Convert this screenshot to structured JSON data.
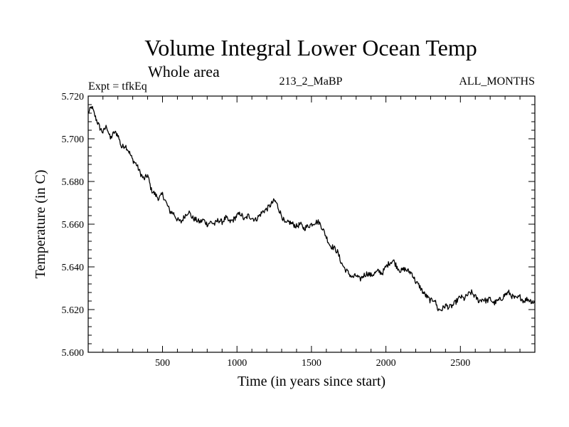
{
  "chart_data": {
    "type": "line",
    "title": "Volume Integral Lower Ocean Temp",
    "subtitle": "Whole area",
    "annotations": {
      "left": "Expt = tfkEq",
      "center": "213_2_MaBP",
      "right": "ALL_MONTHS"
    },
    "xlabel": "Time (in years since start)",
    "ylabel": "Temperature (in C)",
    "xlim": [
      1,
      3000
    ],
    "ylim": [
      5.6,
      5.72
    ],
    "x_ticks": [
      500,
      1000,
      1500,
      2000,
      2500
    ],
    "x_tick_labels": [
      "500",
      "1000",
      "1500",
      "2000",
      "2500"
    ],
    "y_ticks": [
      5.6,
      5.62,
      5.64,
      5.66,
      5.68,
      5.7,
      5.72
    ],
    "y_tick_labels": [
      "5.600",
      "5.620",
      "5.640",
      "5.660",
      "5.680",
      "5.700",
      "5.720"
    ],
    "grid": false,
    "series": [
      {
        "line_color": "#000000",
        "x": [
          1,
          25,
          50,
          80,
          100,
          125,
          150,
          175,
          200,
          225,
          250,
          275,
          300,
          325,
          350,
          375,
          400,
          425,
          450,
          475,
          500,
          525,
          550,
          575,
          600,
          625,
          650,
          675,
          700,
          725,
          750,
          775,
          800,
          825,
          850,
          875,
          900,
          925,
          950,
          975,
          1000,
          1025,
          1050,
          1075,
          1100,
          1125,
          1150,
          1175,
          1200,
          1225,
          1250,
          1265,
          1275,
          1300,
          1325,
          1350,
          1375,
          1400,
          1425,
          1450,
          1475,
          1500,
          1525,
          1550,
          1575,
          1600,
          1625,
          1650,
          1675,
          1700,
          1725,
          1750,
          1775,
          1800,
          1825,
          1850,
          1875,
          1900,
          1925,
          1950,
          1975,
          2000,
          2025,
          2050,
          2075,
          2100,
          2125,
          2150,
          2175,
          2200,
          2225,
          2250,
          2275,
          2300,
          2325,
          2350,
          2375,
          2400,
          2425,
          2450,
          2475,
          2500,
          2525,
          2550,
          2575,
          2600,
          2625,
          2650,
          2675,
          2700,
          2725,
          2750,
          2775,
          2800,
          2825,
          2850,
          2875,
          2900,
          2925,
          2950,
          2975,
          3000
        ],
        "y": [
          5.712,
          5.715,
          5.71,
          5.705,
          5.703,
          5.706,
          5.7,
          5.703,
          5.702,
          5.696,
          5.697,
          5.694,
          5.69,
          5.688,
          5.684,
          5.681,
          5.683,
          5.676,
          5.674,
          5.672,
          5.674,
          5.67,
          5.666,
          5.665,
          5.662,
          5.661,
          5.664,
          5.666,
          5.663,
          5.662,
          5.661,
          5.662,
          5.66,
          5.661,
          5.66,
          5.662,
          5.661,
          5.663,
          5.661,
          5.662,
          5.664,
          5.665,
          5.662,
          5.664,
          5.663,
          5.662,
          5.664,
          5.666,
          5.667,
          5.669,
          5.671,
          5.67,
          5.668,
          5.664,
          5.66,
          5.661,
          5.66,
          5.659,
          5.66,
          5.658,
          5.659,
          5.66,
          5.661,
          5.661,
          5.658,
          5.654,
          5.65,
          5.649,
          5.647,
          5.642,
          5.639,
          5.637,
          5.635,
          5.636,
          5.634,
          5.636,
          5.637,
          5.636,
          5.637,
          5.638,
          5.637,
          5.64,
          5.642,
          5.643,
          5.64,
          5.638,
          5.639,
          5.638,
          5.637,
          5.633,
          5.631,
          5.628,
          5.626,
          5.624,
          5.625,
          5.62,
          5.62,
          5.622,
          5.621,
          5.622,
          5.624,
          5.626,
          5.625,
          5.627,
          5.628,
          5.626,
          5.624,
          5.625,
          5.624,
          5.625,
          5.623,
          5.624,
          5.625,
          5.627,
          5.628,
          5.626,
          5.625,
          5.626,
          5.624,
          5.625,
          5.624,
          5.623
        ]
      }
    ]
  }
}
